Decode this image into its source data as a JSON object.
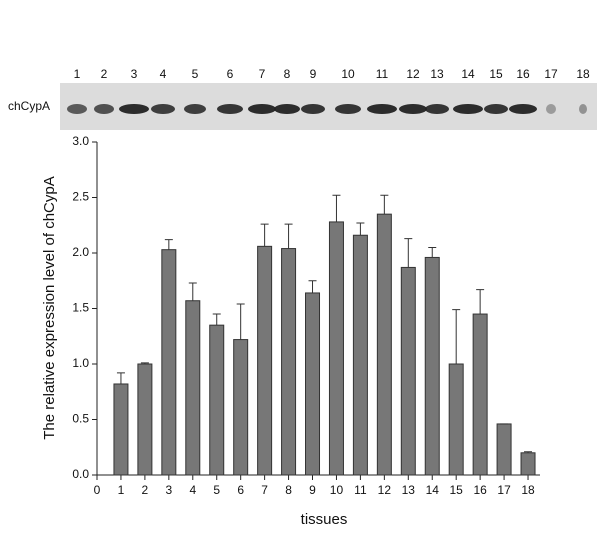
{
  "blot": {
    "label": "chCypA",
    "lanes": [
      "1",
      "2",
      "3",
      "4",
      "5",
      "6",
      "7",
      "8",
      "9",
      "10",
      "11",
      "12",
      "13",
      "14",
      "15",
      "16",
      "17",
      "18"
    ]
  },
  "chart_data": {
    "type": "bar",
    "x": [
      1,
      2,
      3,
      4,
      5,
      6,
      7,
      8,
      9,
      10,
      11,
      12,
      13,
      14,
      15,
      16,
      17,
      18
    ],
    "values": [
      0.82,
      1.0,
      2.03,
      1.57,
      1.35,
      1.22,
      2.06,
      2.04,
      1.64,
      2.28,
      2.16,
      2.35,
      1.87,
      1.96,
      1.0,
      1.45,
      0.46,
      0.2
    ],
    "errors": [
      0.1,
      0.01,
      0.09,
      0.16,
      0.1,
      0.32,
      0.2,
      0.22,
      0.11,
      0.24,
      0.11,
      0.17,
      0.26,
      0.09,
      0.49,
      0.22,
      0.0,
      0.01
    ],
    "color": "#777777",
    "xlabel": "tissues",
    "ylabel": "The relative expression level of chCypA",
    "xlim": [
      0,
      18.5
    ],
    "xticks": [
      0,
      1,
      2,
      3,
      4,
      5,
      6,
      7,
      8,
      9,
      10,
      11,
      12,
      13,
      14,
      15,
      16,
      17,
      18
    ],
    "ylim": [
      0,
      3
    ],
    "yticks": [
      {
        "value": 0,
        "label": "0.0"
      },
      0.5,
      {
        "value": 1,
        "label": "1.0"
      },
      1.5,
      {
        "value": 2,
        "label": "2.0"
      },
      2.5,
      {
        "value": 3,
        "label": "3.0"
      }
    ]
  }
}
